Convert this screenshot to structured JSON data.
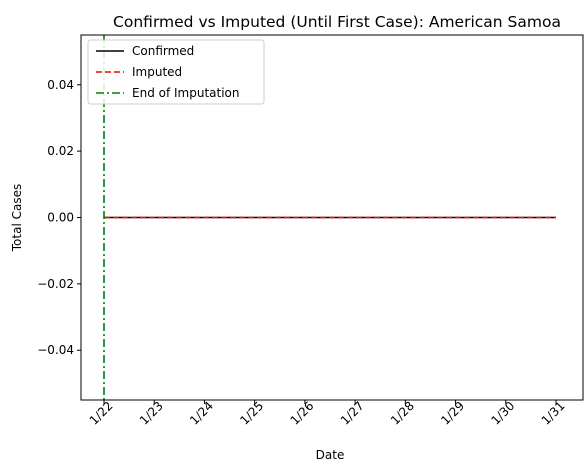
{
  "chart_data": {
    "type": "line",
    "title": "Confirmed vs Imputed (Until First Case): American Samoa",
    "xlabel": "Date",
    "ylabel": "Total Cases",
    "x": [
      "1/22",
      "1/23",
      "1/24",
      "1/25",
      "1/26",
      "1/27",
      "1/28",
      "1/29",
      "1/30",
      "1/31"
    ],
    "ylim": [
      -0.055,
      0.055
    ],
    "yticks": [
      -0.04,
      -0.02,
      0.0,
      0.02,
      0.04
    ],
    "ytick_labels": [
      "−0.04",
      "−0.02",
      "0.00",
      "0.02",
      "0.04"
    ],
    "series": [
      {
        "name": "Confirmed",
        "values": [
          0,
          0,
          0,
          0,
          0,
          0,
          0,
          0,
          0,
          0
        ],
        "color": "#000000",
        "style": "solid"
      },
      {
        "name": "Imputed",
        "values": [
          0,
          0,
          0,
          0,
          0,
          0,
          0,
          0,
          0,
          0
        ],
        "color": "#ff0000",
        "style": "dashed"
      }
    ],
    "vlines": [
      {
        "name": "End of Imputation",
        "x": "1/22",
        "color": "#008000",
        "style": "dashdot"
      }
    ],
    "legend": {
      "position": "upper-left",
      "entries": [
        "Confirmed",
        "Imputed",
        "End of Imputation"
      ]
    },
    "grid": false
  }
}
